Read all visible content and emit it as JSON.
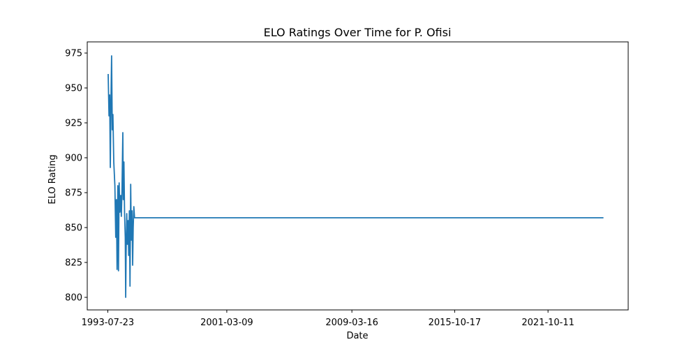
{
  "chart_data": {
    "type": "line",
    "title": "ELO Ratings Over Time for P. Ofisi",
    "xlabel": "Date",
    "ylabel": "ELO Rating",
    "x_ticks": [
      "1993-07-23",
      "2001-03-09",
      "2009-03-16",
      "2015-10-17",
      "2021-10-11"
    ],
    "y_ticks": [
      800,
      825,
      850,
      875,
      900,
      925,
      950,
      975
    ],
    "ylim": [
      791,
      983
    ],
    "xlim": [
      "1992-03-29",
      "2026-12-01"
    ],
    "grid": false,
    "series": [
      {
        "name": "",
        "color": "#1f77b4",
        "points": [
          [
            "1993-08-01",
            960
          ],
          [
            "1993-08-20",
            930
          ],
          [
            "1993-09-05",
            945
          ],
          [
            "1993-09-20",
            893
          ],
          [
            "1993-10-05",
            940
          ],
          [
            "1993-10-20",
            973
          ],
          [
            "1993-11-05",
            920
          ],
          [
            "1993-11-20",
            931
          ],
          [
            "1993-12-10",
            897
          ],
          [
            "1994-01-05",
            880
          ],
          [
            "1994-01-25",
            843
          ],
          [
            "1994-02-10",
            870
          ],
          [
            "1994-02-25",
            820
          ],
          [
            "1994-03-15",
            880
          ],
          [
            "1994-03-30",
            819
          ],
          [
            "1994-04-15",
            882
          ],
          [
            "1994-05-01",
            861
          ],
          [
            "1994-05-20",
            873
          ],
          [
            "1994-06-05",
            858
          ],
          [
            "1994-06-20",
            876
          ],
          [
            "1994-07-10",
            918
          ],
          [
            "1994-07-20",
            870
          ],
          [
            "1994-08-05",
            897
          ],
          [
            "1994-08-20",
            860
          ],
          [
            "1994-09-05",
            843
          ],
          [
            "1994-09-15",
            800
          ],
          [
            "1994-09-25",
            832
          ],
          [
            "1994-10-10",
            860
          ],
          [
            "1994-10-25",
            838
          ],
          [
            "1994-11-10",
            855
          ],
          [
            "1994-11-25",
            830
          ],
          [
            "1994-12-10",
            862
          ],
          [
            "1994-12-25",
            808
          ],
          [
            "1995-01-10",
            881
          ],
          [
            "1995-01-25",
            841
          ],
          [
            "1995-02-10",
            862
          ],
          [
            "1995-02-25",
            823
          ],
          [
            "1995-03-10",
            850
          ],
          [
            "1995-03-25",
            865
          ],
          [
            "1995-04-10",
            857
          ],
          [
            "2025-05-01",
            857
          ]
        ]
      }
    ]
  }
}
